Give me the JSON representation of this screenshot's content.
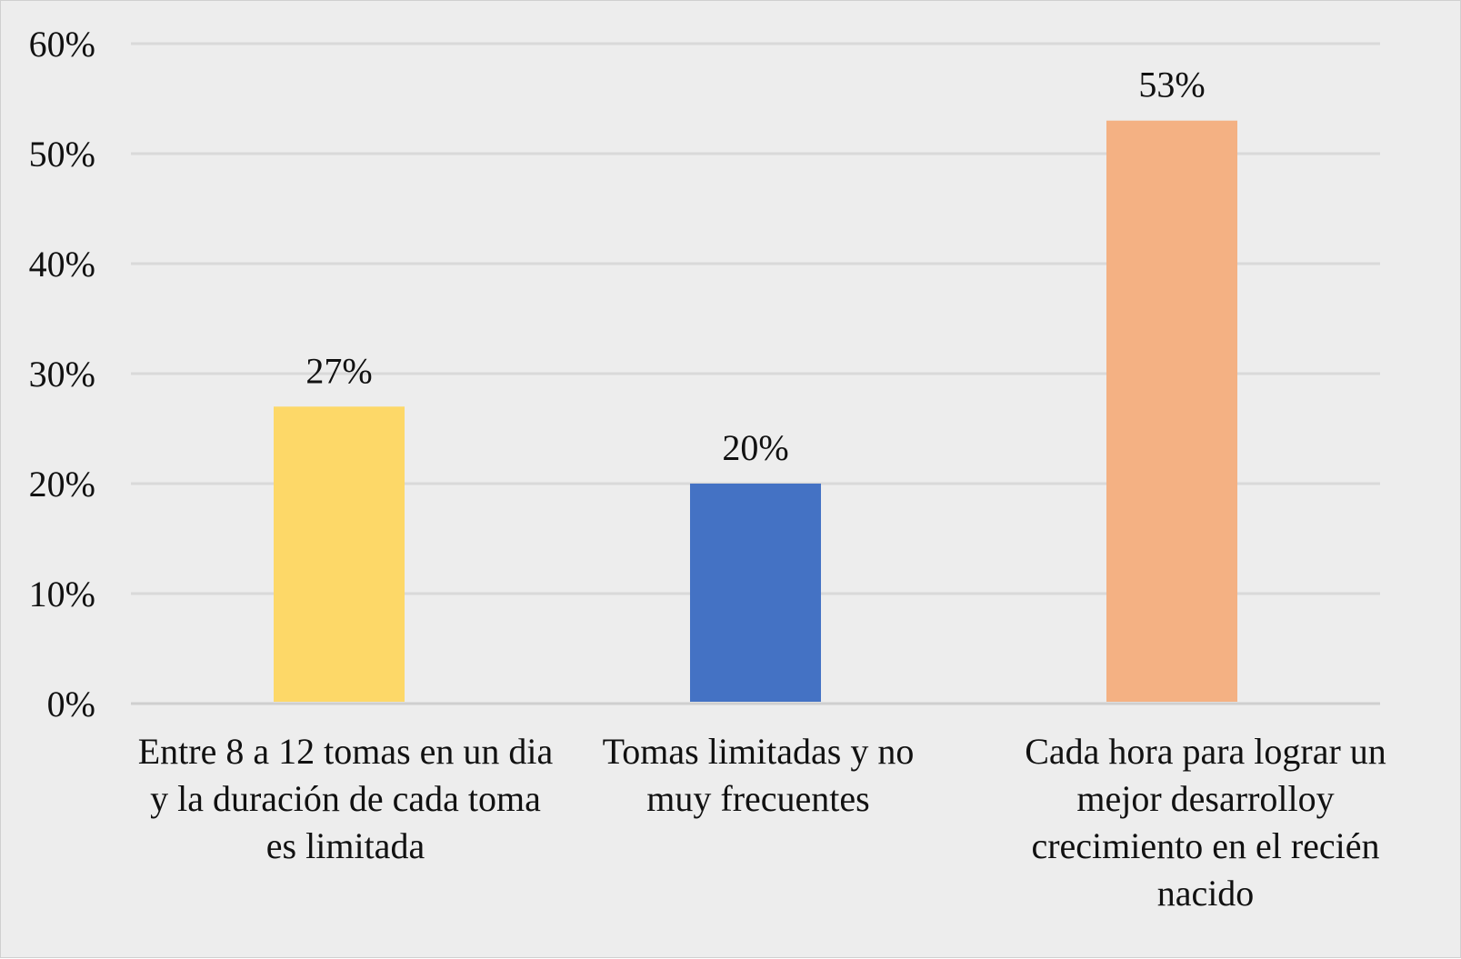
{
  "chart_data": {
    "type": "bar",
    "title": "",
    "xlabel": "",
    "ylabel": "",
    "ylim": [
      0,
      60
    ],
    "yticks": [
      "0%",
      "10%",
      "20%",
      "30%",
      "40%",
      "50%",
      "60%"
    ],
    "ytick_values": [
      0,
      10,
      20,
      30,
      40,
      50,
      60
    ],
    "grid": true,
    "categories": [
      "Entre 8 a 12 tomas en un dia y la duración de cada toma es limitada",
      "Tomas limitadas y no muy frecuentes",
      "Cada hora para lograr un mejor desarrolloy crecimiento en el recién nacido"
    ],
    "values": [
      27,
      20,
      53
    ],
    "data_labels": [
      "27%",
      "20%",
      "53%"
    ],
    "colors": [
      "#fdd868",
      "#4472c4",
      "#f4b183"
    ]
  }
}
